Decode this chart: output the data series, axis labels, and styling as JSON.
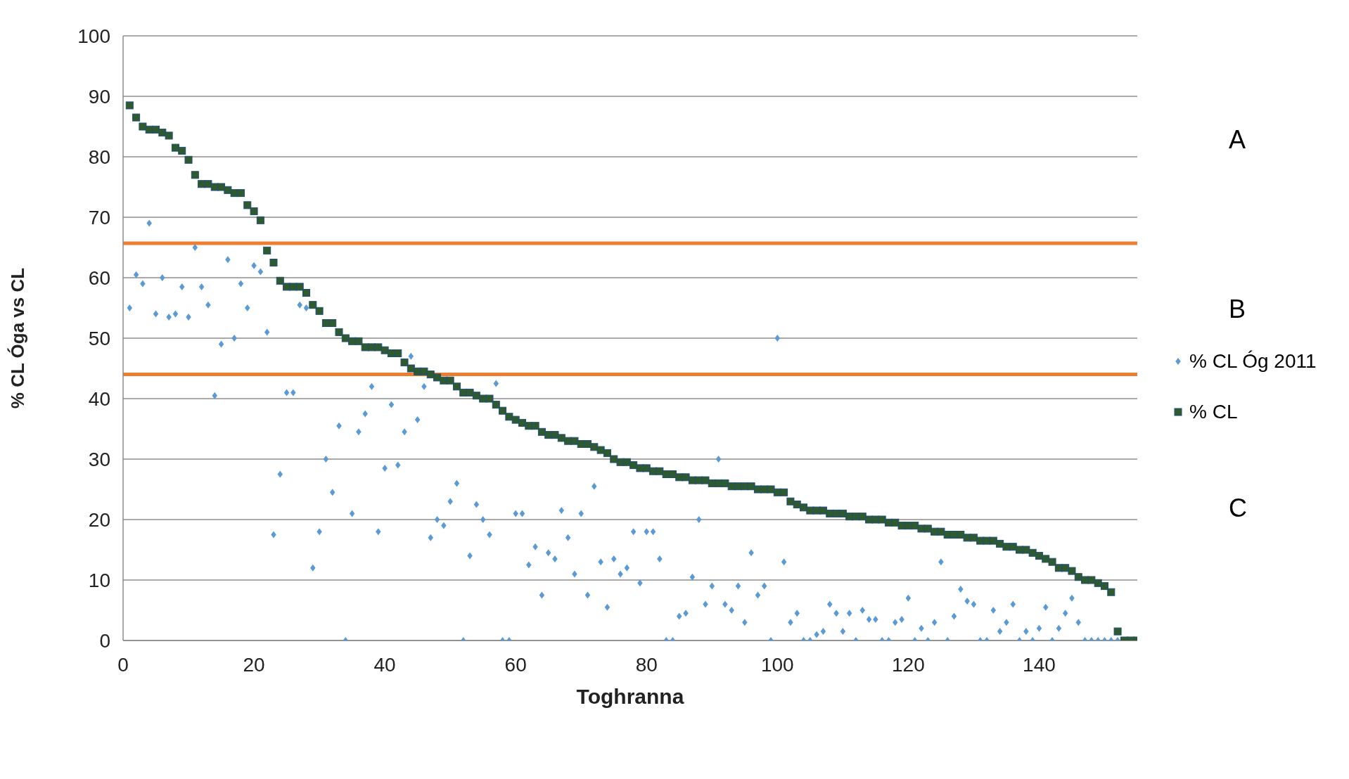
{
  "chart_data": {
    "type": "scatter",
    "xlabel": "Toghranna",
    "ylabel": "% CL Óga vs CL",
    "xlim": [
      0,
      155
    ],
    "xticks": [
      0,
      20,
      40,
      60,
      80,
      100,
      120,
      140
    ],
    "ylim": [
      0,
      100
    ],
    "yticks": [
      0,
      10,
      20,
      30,
      40,
      50,
      60,
      70,
      80,
      90,
      100
    ],
    "grid": "y",
    "legend": "right",
    "ref_lines": [
      {
        "axis": "y",
        "value": 65.7,
        "color": "#ed7d31"
      },
      {
        "axis": "y",
        "value": 44,
        "color": "#ed7d31"
      }
    ],
    "annotations": [
      "A",
      "B",
      "C"
    ],
    "series": [
      {
        "name": "% CL Óg 2011",
        "color": "#5b9bd5",
        "marker": "diamond",
        "x": [
          1,
          2,
          3,
          4,
          5,
          6,
          7,
          8,
          9,
          10,
          11,
          12,
          13,
          14,
          15,
          16,
          17,
          18,
          19,
          20,
          21,
          22,
          23,
          24,
          25,
          26,
          27,
          28,
          29,
          30,
          31,
          32,
          33,
          34,
          35,
          36,
          37,
          38,
          39,
          40,
          41,
          42,
          43,
          44,
          45,
          46,
          47,
          48,
          49,
          50,
          51,
          52,
          53,
          54,
          55,
          56,
          57,
          58,
          59,
          60,
          61,
          62,
          63,
          64,
          65,
          66,
          67,
          68,
          69,
          70,
          71,
          72,
          73,
          74,
          75,
          76,
          77,
          78,
          79,
          80,
          81,
          82,
          83,
          84,
          85,
          86,
          87,
          88,
          89,
          90,
          91,
          92,
          93,
          94,
          95,
          96,
          97,
          98,
          99,
          100,
          101,
          102,
          103,
          104,
          105,
          106,
          107,
          108,
          109,
          110,
          111,
          112,
          113,
          114,
          115,
          116,
          117,
          118,
          119,
          120,
          121,
          122,
          123,
          124,
          125,
          126,
          127,
          128,
          129,
          130,
          131,
          132,
          133,
          134,
          135,
          136,
          137,
          138,
          139,
          140,
          141,
          142,
          143,
          144,
          145,
          146,
          147,
          148,
          149,
          150,
          151,
          152
        ],
        "values": [
          55,
          60.5,
          59,
          69,
          54,
          60,
          53.5,
          54,
          58.5,
          53.5,
          65,
          58.5,
          55.5,
          40.5,
          49,
          63,
          50,
          59,
          55,
          62,
          61,
          51,
          17.5,
          27.5,
          41,
          41,
          55.5,
          55,
          12,
          18,
          30,
          24.5,
          35.5,
          0,
          21,
          34.5,
          37.5,
          42,
          18,
          28.5,
          39,
          29,
          34.5,
          47,
          36.5,
          42,
          17,
          20,
          19,
          23,
          26,
          0,
          14,
          22.5,
          20,
          17.5,
          42.5,
          0,
          0,
          21,
          21,
          12.5,
          15.5,
          7.5,
          14.5,
          13.5,
          21.5,
          17,
          11,
          21,
          7.5,
          25.5,
          13,
          5.5,
          13.5,
          11,
          12,
          18,
          9.5,
          18,
          18,
          13.5,
          0,
          0,
          4,
          4.5,
          10.5,
          20,
          6,
          9,
          30,
          6,
          5,
          9,
          3,
          14.5,
          7.5,
          9,
          0,
          50,
          13,
          3,
          4.5,
          0,
          0,
          1,
          1.5,
          6,
          4.5,
          1.5,
          4.5,
          0,
          5,
          3.5,
          3.5,
          0,
          0,
          3,
          3.5,
          7,
          0,
          2,
          0,
          3,
          13,
          0,
          4,
          8.5,
          6.5,
          6,
          0,
          0,
          5,
          1.5,
          3,
          6,
          0,
          1.5,
          0,
          2,
          5.5,
          0,
          2,
          4.5,
          7,
          3,
          0,
          0,
          0,
          0,
          0,
          0
        ]
      },
      {
        "name": "% CL",
        "color": "#2e5a2e",
        "marker": "square",
        "x": [
          1,
          2,
          3,
          4,
          5,
          6,
          7,
          8,
          9,
          10,
          11,
          12,
          13,
          14,
          15,
          16,
          17,
          18,
          19,
          20,
          21,
          22,
          23,
          24,
          25,
          26,
          27,
          28,
          29,
          30,
          31,
          32,
          33,
          34,
          35,
          36,
          37,
          38,
          39,
          40,
          41,
          42,
          43,
          44,
          45,
          46,
          47,
          48,
          49,
          50,
          51,
          52,
          53,
          54,
          55,
          56,
          57,
          58,
          59,
          60,
          61,
          62,
          63,
          64,
          65,
          66,
          67,
          68,
          69,
          70,
          71,
          72,
          73,
          74,
          75,
          76,
          77,
          78,
          79,
          80,
          81,
          82,
          83,
          84,
          85,
          86,
          87,
          88,
          89,
          90,
          91,
          92,
          93,
          94,
          95,
          96,
          97,
          98,
          99,
          100,
          101,
          102,
          103,
          104,
          105,
          106,
          107,
          108,
          109,
          110,
          111,
          112,
          113,
          114,
          115,
          116,
          117,
          118,
          119,
          120,
          121,
          122,
          123,
          124,
          125,
          126,
          127,
          128,
          129,
          130,
          131,
          132,
          133,
          134,
          135,
          136,
          137,
          138,
          139,
          140,
          141,
          142,
          143,
          144,
          145,
          146,
          147,
          148,
          149,
          150,
          151,
          152,
          153,
          154,
          155
        ],
        "values": [
          88.5,
          86.5,
          85,
          84.5,
          84.5,
          84,
          83.5,
          81.5,
          81,
          79.5,
          77,
          75.5,
          75.5,
          75,
          75,
          74.5,
          74,
          74,
          72,
          71,
          69.5,
          64.5,
          62.5,
          59.5,
          58.5,
          58.5,
          58.5,
          57.5,
          55.5,
          54.5,
          52.5,
          52.5,
          51,
          50,
          49.5,
          49.5,
          48.5,
          48.5,
          48.5,
          48,
          47.5,
          47.5,
          46,
          45,
          44.5,
          44.5,
          44,
          43.5,
          43,
          43,
          42,
          41,
          41,
          40.5,
          40,
          40,
          39,
          38,
          37,
          36.5,
          36,
          35.5,
          35.5,
          34.5,
          34,
          34,
          33.5,
          33,
          33,
          32.5,
          32.5,
          32,
          31.5,
          31,
          30,
          29.5,
          29.5,
          29,
          28.5,
          28.5,
          28,
          28,
          27.5,
          27.5,
          27,
          27,
          26.5,
          26.5,
          26.5,
          26,
          26,
          26,
          25.5,
          25.5,
          25.5,
          25.5,
          25,
          25,
          25,
          24.5,
          24.5,
          23,
          22.5,
          22,
          21.5,
          21.5,
          21.5,
          21,
          21,
          21,
          20.5,
          20.5,
          20.5,
          20,
          20,
          20,
          19.5,
          19.5,
          19,
          19,
          19,
          18.5,
          18.5,
          18,
          18,
          17.5,
          17.5,
          17.5,
          17,
          17,
          16.5,
          16.5,
          16.5,
          16,
          15.5,
          15.5,
          15,
          15,
          14.5,
          14,
          13.5,
          13,
          12,
          12,
          11.5,
          10.5,
          10,
          10,
          9.5,
          9,
          8,
          1.5,
          0,
          0,
          0
        ]
      }
    ]
  }
}
